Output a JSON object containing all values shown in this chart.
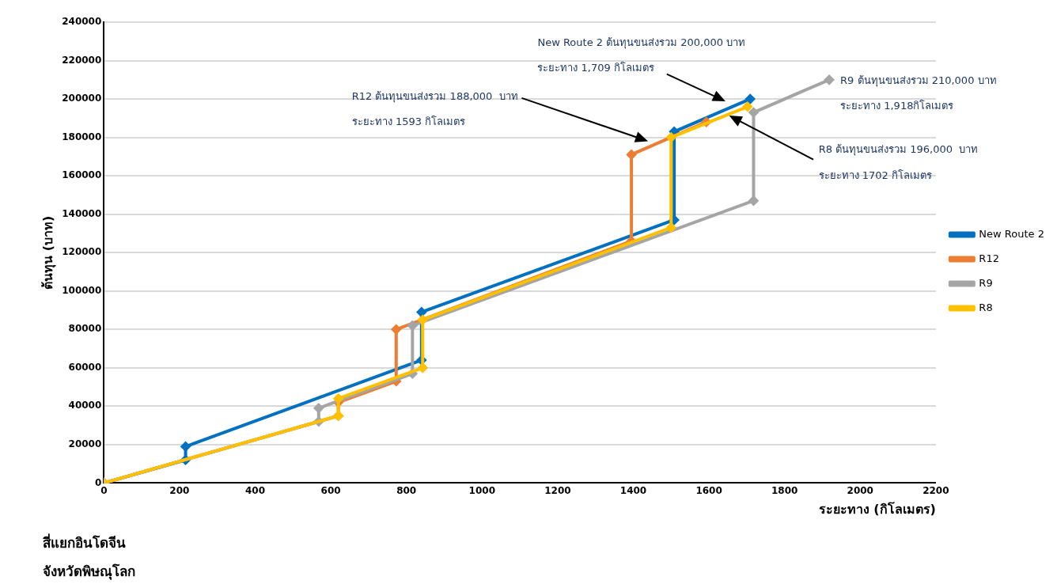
{
  "chart_data": {
    "type": "line",
    "xlabel": "ระยะทาง (กิโลเมตร)",
    "ylabel": "ต้นทุน (บาท)",
    "xlim": [
      0,
      2200
    ],
    "xticks": [
      0,
      200,
      400,
      600,
      800,
      1000,
      1200,
      1400,
      1600,
      1800,
      2000,
      2200
    ],
    "ylim": [
      0,
      240000
    ],
    "yticks": [
      0,
      20000,
      40000,
      60000,
      80000,
      100000,
      120000,
      140000,
      160000,
      180000,
      200000,
      220000,
      240000
    ],
    "grid": "y",
    "legend": "right",
    "marker": "diamond",
    "line_style": "solid",
    "series": [
      {
        "name": "New Route 2",
        "color": "#0070c0",
        "x": [
          0,
          216,
          216,
          840,
          840,
          1508,
          1508,
          1709
        ],
        "values": [
          0,
          12000,
          19000,
          64000,
          89000,
          137000,
          183000,
          200000
        ]
      },
      {
        "name": "R12",
        "color": "#ed7d31",
        "x": [
          0,
          620,
          620,
          773,
          773,
          1395,
          1395,
          1593
        ],
        "values": [
          0,
          35000,
          42000,
          53000,
          80000,
          126000,
          171000,
          188000
        ]
      },
      {
        "name": "R9",
        "color": "#a5a5a5",
        "x": [
          0,
          568,
          568,
          816,
          816,
          1718,
          1718,
          1918
        ],
        "values": [
          0,
          32000,
          39000,
          57000,
          82000,
          147000,
          193000,
          210000
        ]
      },
      {
        "name": "R8",
        "color": "#ffc000",
        "x": [
          0,
          620,
          620,
          843,
          843,
          1500,
          1500,
          1702
        ],
        "values": [
          0,
          35000,
          44000,
          60000,
          85000,
          133000,
          180000,
          196000
        ]
      }
    ],
    "annotations": [
      "New Route 2 ต้นทุนขนส่งรวม 200,000 บาท",
      "ระยะทาง 1,709 กิโลเมตร",
      "R12 ต้นทุนขนส่งรวม 188,000  บาท",
      "ระยะทาง 1593 กิโลเมตร",
      {
        "text": "R9 ต้นทุนขนส่งรวม 210,000 บาท",
        "x": 1918,
        "y": 210000
      },
      {
        "text": "ระยะทาง 1,918กิโลเมตร",
        "x": 1918,
        "y": 210000
      },
      "R8 ต้นทุนขนส่งรวม 196,000  บาท",
      "ระยะทาง 1702 กิโลเมตร",
      "สี่แยกอินโดจีน",
      "จังหวัดพิษณุโลก"
    ]
  }
}
